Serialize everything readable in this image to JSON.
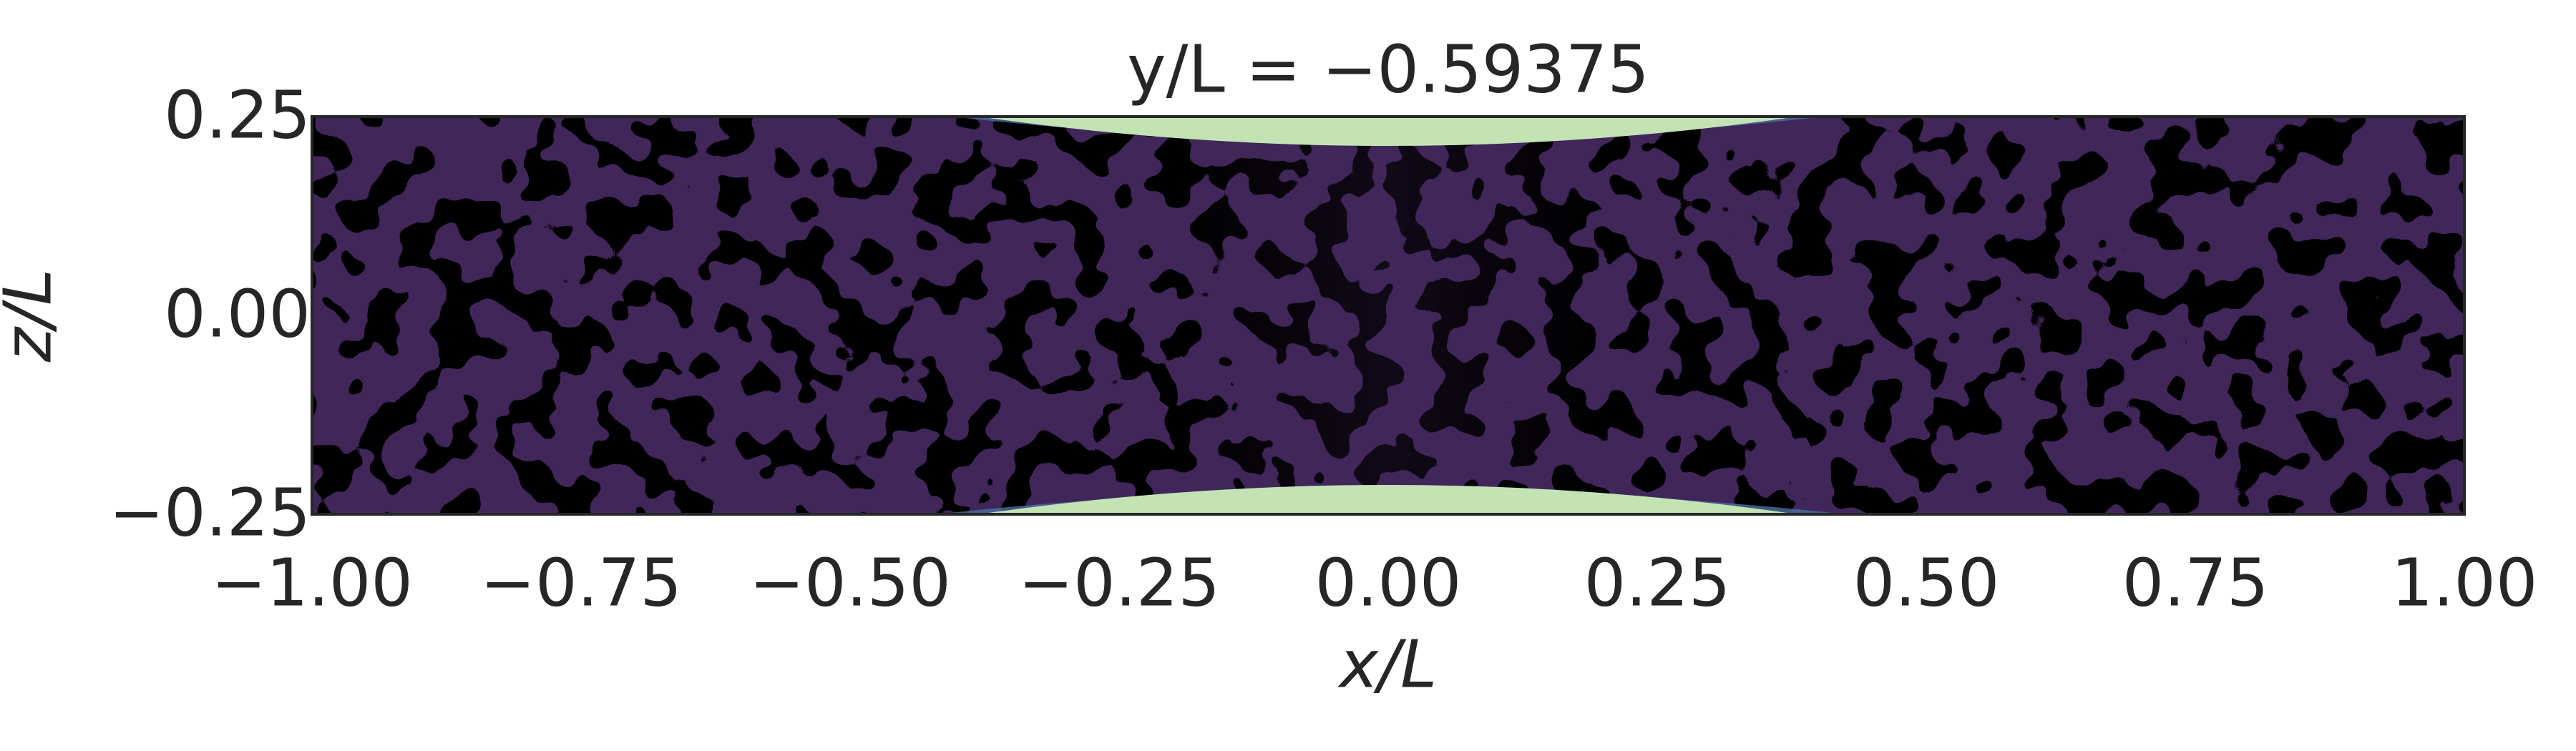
{
  "chart_data": {
    "type": "contour",
    "title": "y/L = −0.59375",
    "xlabel": "x/L",
    "ylabel": "z/L",
    "xlim": [
      -1,
      1
    ],
    "ylim": [
      -0.25,
      0.25
    ],
    "xticks": [
      {
        "value": -1,
        "label": "−1.00"
      },
      {
        "value": -0.75,
        "label": "−0.75"
      },
      {
        "value": -0.5,
        "label": "−0.50"
      },
      {
        "value": -0.25,
        "label": "−0.25"
      },
      {
        "value": 0,
        "label": "0.00"
      },
      {
        "value": 0.25,
        "label": "0.25"
      },
      {
        "value": 0.5,
        "label": "0.50"
      },
      {
        "value": 0.75,
        "label": "0.75"
      },
      {
        "value": 1,
        "label": "1.00"
      }
    ],
    "yticks": [
      {
        "value": 0.25,
        "label": "0.25"
      },
      {
        "value": 0,
        "label": "0.00"
      },
      {
        "value": -0.25,
        "label": "−0.25"
      }
    ]
  }
}
